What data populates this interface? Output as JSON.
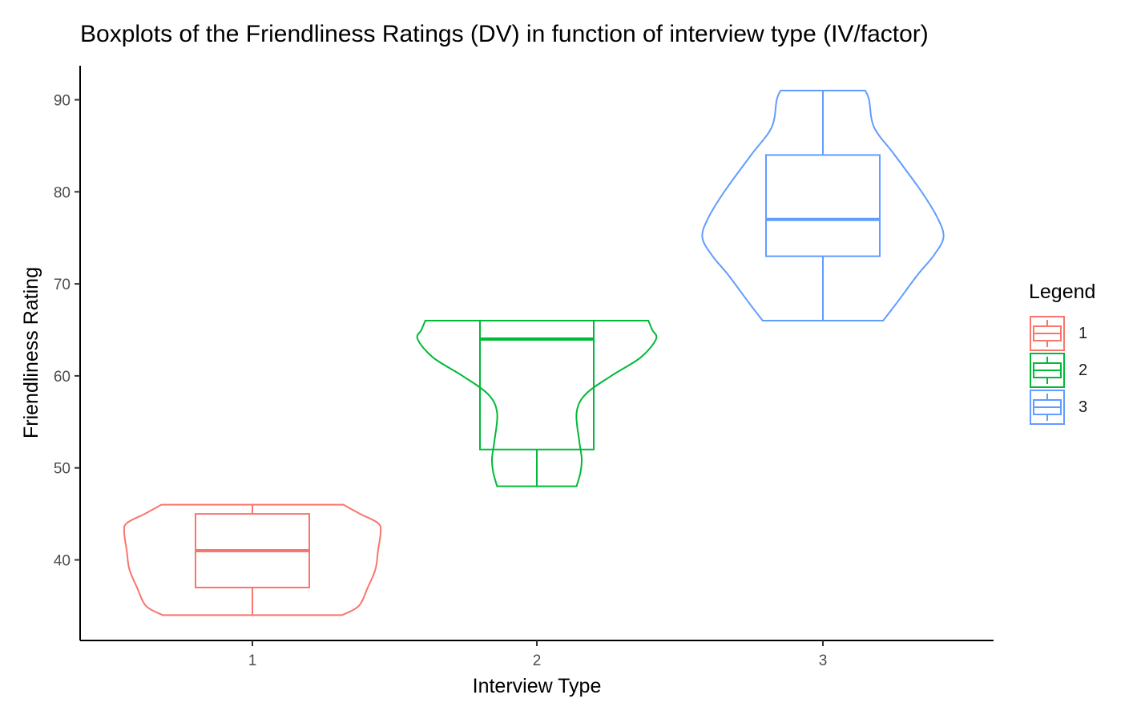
{
  "chart_data": {
    "type": "violin+boxplot",
    "title": "Boxplots of the Friendliness Ratings (DV) in function of interview type (IV/factor)",
    "xlabel": "Interview Type",
    "ylabel": "Friendliness Rating",
    "categories": [
      "1",
      "2",
      "3"
    ],
    "y_ticks": [
      40,
      50,
      60,
      70,
      80,
      90
    ],
    "ylim": [
      31,
      94
    ],
    "grid": false,
    "legend": {
      "title": "Legend",
      "position": "right",
      "entries": [
        "1",
        "2",
        "3"
      ]
    },
    "colors": {
      "1": "#F8766D",
      "2": "#00BA38",
      "3": "#619CFF"
    },
    "groups": [
      {
        "name": "1",
        "min": 34,
        "q1": 37,
        "median": 41,
        "q3": 45,
        "max": 46,
        "violin_profile": [
          [
            34,
            0.7
          ],
          [
            35,
            0.83
          ],
          [
            37,
            0.9
          ],
          [
            39,
            0.96
          ],
          [
            41,
            0.98
          ],
          [
            43,
            1.0
          ],
          [
            44,
            0.98
          ],
          [
            45,
            0.84
          ],
          [
            46,
            0.71
          ]
        ]
      },
      {
        "name": "2",
        "min": 48,
        "q1": 52,
        "median": 64,
        "q3": 66,
        "max": 66,
        "violin_profile": [
          [
            48,
            0.31
          ],
          [
            49.5,
            0.34
          ],
          [
            51,
            0.35
          ],
          [
            53,
            0.33
          ],
          [
            56,
            0.31
          ],
          [
            58,
            0.38
          ],
          [
            60,
            0.58
          ],
          [
            62,
            0.81
          ],
          [
            64,
            0.93
          ],
          [
            65,
            0.9
          ],
          [
            66,
            0.87
          ]
        ]
      },
      {
        "name": "3",
        "min": 66,
        "q1": 73,
        "median": 77,
        "q3": 84,
        "max": 91,
        "violin_profile": [
          [
            66,
            0.47
          ],
          [
            68,
            0.58
          ],
          [
            71,
            0.74
          ],
          [
            73,
            0.86
          ],
          [
            75,
            0.94
          ],
          [
            77,
            0.9
          ],
          [
            80,
            0.77
          ],
          [
            84,
            0.56
          ],
          [
            87,
            0.4
          ],
          [
            90,
            0.36
          ],
          [
            91,
            0.33
          ]
        ]
      }
    ]
  }
}
